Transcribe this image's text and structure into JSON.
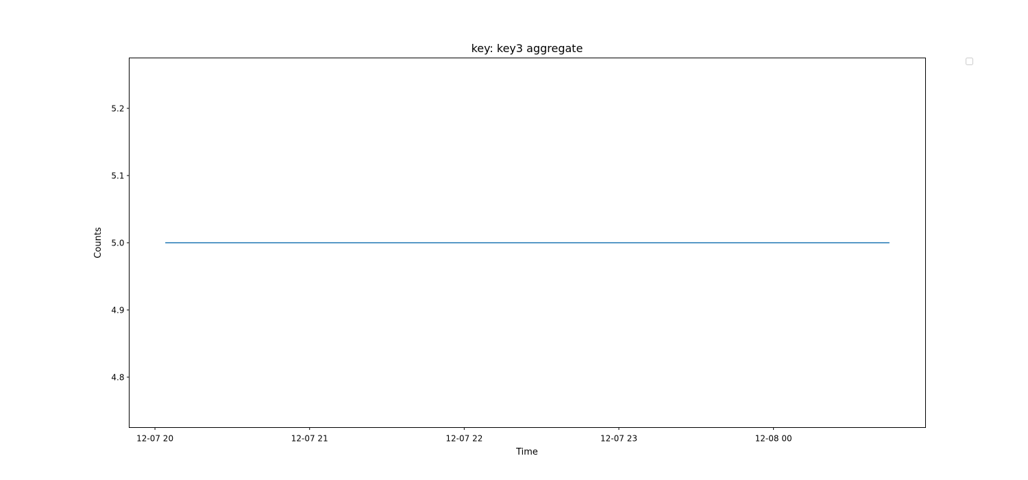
{
  "chart_data": {
    "type": "line",
    "title": "key: key3 aggregate",
    "xlabel": "Time",
    "ylabel": "Counts",
    "x_ticks": [
      {
        "value": "12-07 20:00",
        "label": "12-07 20"
      },
      {
        "value": "12-07 21:00",
        "label": "12-07 21"
      },
      {
        "value": "12-07 22:00",
        "label": "12-07 22"
      },
      {
        "value": "12-07 23:00",
        "label": "12-07 23"
      },
      {
        "value": "12-08 00:00",
        "label": "12-08 00"
      }
    ],
    "y_ticks": [
      4.8,
      4.9,
      5.0,
      5.1,
      5.2
    ],
    "y_tick_labels": [
      "4.8",
      "4.9",
      "5.0",
      "5.1",
      "5.2"
    ],
    "xlim": [
      "12-07 19:50",
      "12-08 00:59"
    ],
    "ylim": [
      4.725,
      5.275
    ],
    "series": [
      {
        "color": "#1f77b4",
        "x": [
          "12-07 20:04",
          "12-08 00:45"
        ],
        "y": [
          5.0,
          5.0
        ]
      }
    ],
    "legend": {
      "entries": [],
      "placement": "outside top-right"
    },
    "grid": false
  }
}
